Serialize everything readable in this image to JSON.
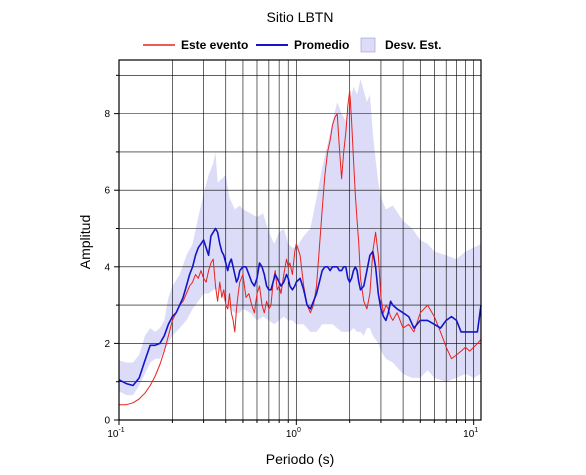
{
  "chart_data": {
    "type": "line",
    "title": "Sitio LBTN",
    "xlabel": "Periodo (s)",
    "ylabel": "Amplitud",
    "x_scale": "log",
    "xlim": [
      0.1,
      11
    ],
    "ylim": [
      0,
      9.4
    ],
    "grid": true,
    "legend_placement": "top",
    "x_ticks": [
      {
        "value": 0.1,
        "base": "10",
        "exp": "-1"
      },
      {
        "value": 1,
        "base": "10",
        "exp": "0"
      },
      {
        "value": 10,
        "base": "10",
        "exp": "1"
      }
    ],
    "y_ticks": [
      0,
      2,
      4,
      6,
      8
    ],
    "series": [
      {
        "name": "Este evento",
        "color": "#e8231f",
        "x": [
          0.1,
          0.11,
          0.12,
          0.13,
          0.14,
          0.15,
          0.16,
          0.17,
          0.18,
          0.19,
          0.2,
          0.21,
          0.22,
          0.23,
          0.24,
          0.25,
          0.26,
          0.27,
          0.28,
          0.29,
          0.3,
          0.31,
          0.32,
          0.33,
          0.34,
          0.35,
          0.36,
          0.37,
          0.38,
          0.39,
          0.4,
          0.41,
          0.42,
          0.43,
          0.44,
          0.45,
          0.46,
          0.47,
          0.48,
          0.5,
          0.52,
          0.54,
          0.56,
          0.58,
          0.6,
          0.62,
          0.64,
          0.66,
          0.68,
          0.7,
          0.72,
          0.74,
          0.76,
          0.78,
          0.8,
          0.82,
          0.85,
          0.88,
          0.9,
          0.92,
          0.95,
          0.98,
          1.0,
          1.05,
          1.1,
          1.15,
          1.2,
          1.25,
          1.3,
          1.35,
          1.4,
          1.45,
          1.5,
          1.55,
          1.6,
          1.65,
          1.7,
          1.75,
          1.8,
          1.85,
          1.9,
          1.95,
          2.0,
          2.05,
          2.1,
          2.15,
          2.2,
          2.25,
          2.3,
          2.4,
          2.5,
          2.6,
          2.7,
          2.8,
          2.9,
          3.0,
          3.1,
          3.2,
          3.3,
          3.4,
          3.5,
          3.7,
          4.0,
          4.3,
          4.6,
          5.0,
          5.5,
          6.0,
          6.5,
          7.0,
          7.5,
          8.0,
          8.5,
          9.0,
          9.5,
          10.0,
          10.5,
          11.0
        ],
        "y": [
          0.4,
          0.4,
          0.45,
          0.55,
          0.7,
          0.9,
          1.15,
          1.45,
          1.8,
          2.2,
          2.6,
          2.8,
          3.0,
          3.1,
          3.3,
          3.5,
          3.6,
          3.8,
          3.7,
          3.9,
          3.7,
          3.6,
          3.9,
          4.1,
          4.2,
          3.5,
          3.1,
          3.6,
          3.2,
          3.4,
          3.0,
          2.9,
          3.3,
          2.8,
          2.6,
          2.3,
          2.9,
          3.3,
          3.6,
          3.8,
          3.2,
          3.3,
          3.0,
          2.8,
          3.3,
          3.5,
          3.0,
          2.8,
          3.1,
          2.9,
          3.0,
          3.6,
          3.9,
          3.4,
          3.5,
          3.3,
          3.8,
          4.2,
          4.0,
          4.1,
          3.8,
          4.4,
          4.6,
          4.3,
          3.5,
          3.0,
          2.8,
          3.0,
          3.5,
          4.5,
          5.5,
          6.4,
          7.0,
          7.3,
          7.7,
          7.9,
          8.0,
          7.1,
          6.3,
          7.0,
          7.5,
          8.2,
          8.6,
          7.8,
          6.8,
          5.9,
          5.2,
          4.6,
          3.7,
          3.1,
          2.9,
          3.3,
          4.4,
          4.9,
          4.3,
          3.2,
          2.8,
          3.0,
          2.9,
          2.7,
          2.6,
          2.8,
          2.4,
          2.5,
          2.3,
          2.8,
          3.0,
          2.7,
          2.3,
          1.9,
          1.6,
          1.7,
          1.8,
          1.9,
          1.8,
          1.9,
          2.0,
          2.1
        ]
      },
      {
        "name": "Promedio",
        "color": "#1414c8",
        "x": [
          0.1,
          0.11,
          0.12,
          0.13,
          0.14,
          0.15,
          0.16,
          0.17,
          0.18,
          0.19,
          0.2,
          0.21,
          0.22,
          0.23,
          0.24,
          0.25,
          0.26,
          0.27,
          0.28,
          0.29,
          0.3,
          0.31,
          0.32,
          0.33,
          0.34,
          0.35,
          0.36,
          0.37,
          0.38,
          0.39,
          0.4,
          0.41,
          0.42,
          0.43,
          0.44,
          0.45,
          0.46,
          0.47,
          0.48,
          0.5,
          0.52,
          0.54,
          0.56,
          0.58,
          0.6,
          0.62,
          0.64,
          0.66,
          0.68,
          0.7,
          0.72,
          0.74,
          0.76,
          0.78,
          0.8,
          0.82,
          0.85,
          0.88,
          0.9,
          0.92,
          0.95,
          0.98,
          1.0,
          1.05,
          1.1,
          1.15,
          1.2,
          1.25,
          1.3,
          1.35,
          1.4,
          1.45,
          1.5,
          1.55,
          1.6,
          1.65,
          1.7,
          1.75,
          1.8,
          1.85,
          1.9,
          1.95,
          2.0,
          2.05,
          2.1,
          2.15,
          2.2,
          2.25,
          2.3,
          2.4,
          2.5,
          2.6,
          2.7,
          2.8,
          2.9,
          3.0,
          3.1,
          3.2,
          3.3,
          3.4,
          3.5,
          3.7,
          4.0,
          4.3,
          4.6,
          5.0,
          5.5,
          6.0,
          6.5,
          7.0,
          7.5,
          8.0,
          8.5,
          9.0,
          9.5,
          10.0,
          10.5,
          11.0
        ],
        "y": [
          1.05,
          0.95,
          0.9,
          1.1,
          1.55,
          1.95,
          1.95,
          2.0,
          2.2,
          2.5,
          2.7,
          2.8,
          3.0,
          3.2,
          3.5,
          3.8,
          4.0,
          4.3,
          4.5,
          4.6,
          4.7,
          4.5,
          4.3,
          4.8,
          4.9,
          5.0,
          4.9,
          4.6,
          4.4,
          4.3,
          4.1,
          3.9,
          4.1,
          4.2,
          4.0,
          3.8,
          3.6,
          3.7,
          3.9,
          4.0,
          4.0,
          3.8,
          3.6,
          3.5,
          3.7,
          4.1,
          4.0,
          3.8,
          3.5,
          3.4,
          3.4,
          3.6,
          3.8,
          3.7,
          3.6,
          3.5,
          3.6,
          3.8,
          3.7,
          3.5,
          3.4,
          3.5,
          3.6,
          3.7,
          3.4,
          3.0,
          2.9,
          3.1,
          3.3,
          3.6,
          3.9,
          4.0,
          4.0,
          3.9,
          4.0,
          4.0,
          4.0,
          3.9,
          3.9,
          4.0,
          4.0,
          3.7,
          3.6,
          3.7,
          3.9,
          4.0,
          3.9,
          3.6,
          3.4,
          3.5,
          3.9,
          4.3,
          4.4,
          4.0,
          3.3,
          2.9,
          2.7,
          2.6,
          2.8,
          3.1,
          3.0,
          2.9,
          2.8,
          2.7,
          2.4,
          2.6,
          2.6,
          2.5,
          2.4,
          2.6,
          2.7,
          2.6,
          2.3,
          2.3,
          2.3,
          2.3,
          2.3,
          3.0
        ]
      }
    ],
    "band": {
      "name": "Desv. Est.",
      "color": "#dcdcf8",
      "x": [
        0.1,
        0.11,
        0.12,
        0.13,
        0.14,
        0.15,
        0.16,
        0.17,
        0.18,
        0.19,
        0.2,
        0.22,
        0.24,
        0.26,
        0.28,
        0.3,
        0.32,
        0.34,
        0.35,
        0.36,
        0.38,
        0.4,
        0.42,
        0.45,
        0.48,
        0.5,
        0.55,
        0.6,
        0.65,
        0.7,
        0.75,
        0.8,
        0.85,
        0.9,
        0.95,
        1.0,
        1.1,
        1.2,
        1.3,
        1.4,
        1.5,
        1.6,
        1.7,
        1.8,
        1.9,
        2.0,
        2.1,
        2.2,
        2.3,
        2.4,
        2.5,
        2.6,
        2.7,
        2.8,
        2.9,
        3.0,
        3.2,
        3.5,
        4.0,
        4.5,
        5.0,
        5.5,
        6.0,
        7.0,
        8.0,
        9.0,
        10.0,
        11.0
      ],
      "lower": [
        0.75,
        0.65,
        0.65,
        0.9,
        1.2,
        1.5,
        1.6,
        1.6,
        1.8,
        2.0,
        2.2,
        2.4,
        2.6,
        2.9,
        3.1,
        3.3,
        3.3,
        3.4,
        3.4,
        3.4,
        3.3,
        3.0,
        2.9,
        2.8,
        2.8,
        2.9,
        2.8,
        2.6,
        2.7,
        2.6,
        2.5,
        2.6,
        2.7,
        2.6,
        2.6,
        2.5,
        2.5,
        2.3,
        2.3,
        2.5,
        2.5,
        2.5,
        2.4,
        2.3,
        2.3,
        2.3,
        2.4,
        2.3,
        2.3,
        2.2,
        2.4,
        2.4,
        2.2,
        2.1,
        2.0,
        1.8,
        1.6,
        1.5,
        1.2,
        1.1,
        1.1,
        1.3,
        1.1,
        1.0,
        1.1,
        1.2,
        1.1,
        1.2
      ],
      "upper": [
        1.55,
        1.5,
        1.5,
        1.7,
        2.2,
        2.4,
        2.3,
        2.4,
        2.6,
        3.2,
        3.5,
        3.8,
        4.3,
        4.6,
        5.3,
        5.9,
        6.4,
        6.7,
        7.0,
        6.2,
        6.3,
        6.4,
        5.8,
        5.5,
        5.6,
        5.5,
        5.4,
        5.3,
        5.4,
        4.9,
        4.6,
        4.9,
        5.0,
        4.6,
        4.5,
        4.5,
        4.8,
        5.0,
        5.8,
        6.6,
        7.2,
        7.8,
        8.3,
        8.0,
        7.8,
        8.3,
        8.7,
        8.5,
        8.9,
        8.6,
        8.3,
        8.5,
        7.5,
        6.8,
        6.2,
        5.8,
        5.5,
        5.6,
        5.2,
        5.0,
        4.7,
        4.6,
        4.4,
        4.3,
        4.2,
        4.4,
        4.5,
        4.6
      ]
    }
  }
}
